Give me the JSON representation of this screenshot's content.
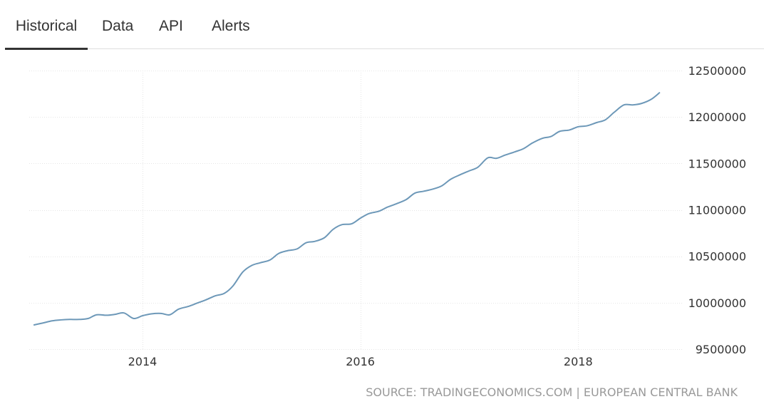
{
  "tabs": [
    {
      "label": "Historical",
      "active": true
    },
    {
      "label": "Data",
      "active": false
    },
    {
      "label": "API",
      "active": false
    },
    {
      "label": "Alerts",
      "active": false
    }
  ],
  "source": "SOURCE: TRADINGECONOMICS.COM | EUROPEAN CENTRAL BANK",
  "colors": {
    "line": "#6d98b8",
    "grid": "#e6e6e6",
    "tab_underline": "#333333"
  },
  "chart_data": {
    "type": "line",
    "title": "",
    "xlabel": "",
    "ylabel": "",
    "xlim": [
      2012.96,
      2018.96
    ],
    "ylim": [
      9500000,
      12500000
    ],
    "x_ticks": [
      2014,
      2016,
      2018
    ],
    "x_tick_labels": [
      "2014",
      "2016",
      "2018"
    ],
    "y_ticks": [
      9500000,
      10000000,
      10500000,
      11000000,
      11500000,
      12000000,
      12500000
    ],
    "y_tick_labels": [
      "9500000",
      "10000000",
      "10500000",
      "11000000",
      "11500000",
      "12000000",
      "12500000"
    ],
    "y_axis_side": "right",
    "grid": true,
    "series": [
      {
        "x": [
          2013.0,
          2013.08,
          2013.17,
          2013.25,
          2013.33,
          2013.42,
          2013.5,
          2013.58,
          2013.67,
          2013.75,
          2013.83,
          2013.92,
          2014.0,
          2014.08,
          2014.17,
          2014.25,
          2014.33,
          2014.42,
          2014.5,
          2014.58,
          2014.67,
          2014.75,
          2014.83,
          2014.92,
          2015.0,
          2015.08,
          2015.17,
          2015.25,
          2015.33,
          2015.42,
          2015.5,
          2015.58,
          2015.67,
          2015.75,
          2015.83,
          2015.92,
          2016.0,
          2016.08,
          2016.17,
          2016.25,
          2016.33,
          2016.42,
          2016.5,
          2016.58,
          2016.67,
          2016.75,
          2016.83,
          2016.92,
          2017.0,
          2017.08,
          2017.17,
          2017.25,
          2017.33,
          2017.42,
          2017.5,
          2017.58,
          2017.67,
          2017.75,
          2017.83,
          2017.92,
          2018.0,
          2018.08,
          2018.17,
          2018.25,
          2018.33,
          2018.42,
          2018.5,
          2018.58,
          2018.67,
          2018.75
        ],
        "values": [
          9760000,
          9780000,
          9805000,
          9815000,
          9820000,
          9820000,
          9830000,
          9870000,
          9865000,
          9875000,
          9890000,
          9830000,
          9860000,
          9880000,
          9885000,
          9870000,
          9930000,
          9960000,
          9995000,
          10030000,
          10075000,
          10100000,
          10180000,
          10330000,
          10400000,
          10430000,
          10460000,
          10530000,
          10560000,
          10580000,
          10645000,
          10660000,
          10700000,
          10790000,
          10840000,
          10850000,
          10910000,
          10960000,
          10985000,
          11030000,
          11065000,
          11110000,
          11180000,
          11200000,
          11225000,
          11260000,
          11330000,
          11380000,
          11420000,
          11460000,
          11560000,
          11555000,
          11590000,
          11625000,
          11660000,
          11720000,
          11770000,
          11790000,
          11845000,
          11860000,
          11895000,
          11905000,
          11940000,
          11970000,
          12050000,
          12130000,
          12130000,
          12145000,
          12190000,
          12265000
        ]
      }
    ]
  }
}
